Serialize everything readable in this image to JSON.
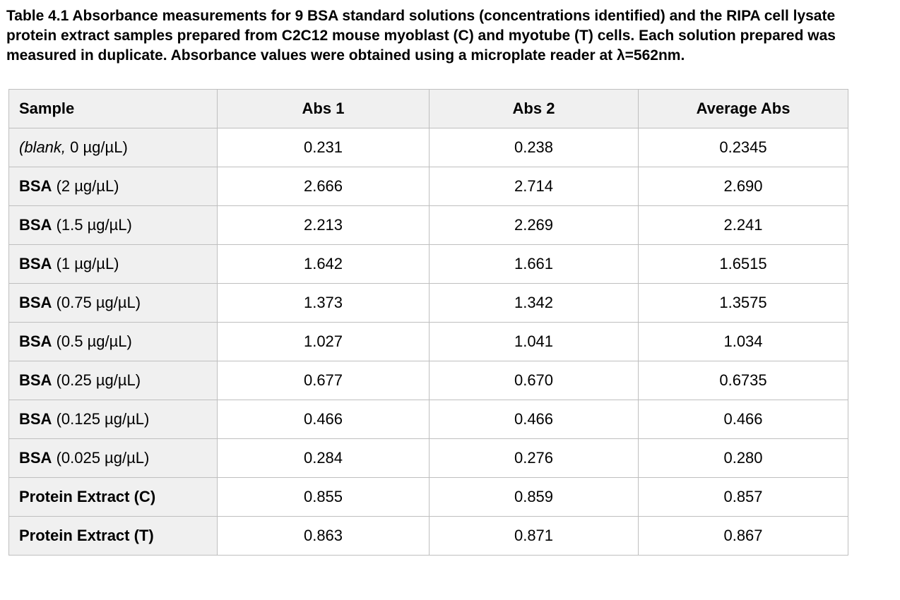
{
  "caption": "Table 4.1 Absorbance measurements for 9 BSA standard solutions (concentrations identified) and the RIPA cell lysate protein extract samples prepared from C2C12 mouse myoblast (C) and myotube (T) cells. Each solution prepared was measured in duplicate. Absorbance values were obtained using a microplate reader at λ=562nm.",
  "colors": {
    "cell_fill": "#f0f0f0",
    "border": "#bfbfbf",
    "text": "#000000",
    "data_cell_bg": "#ffffff"
  },
  "table": {
    "headers": [
      "Sample",
      "Abs 1",
      "Abs 2",
      "Average Abs"
    ],
    "rows": [
      {
        "sample": [
          {
            "text": "(blank,",
            "style": "italic"
          },
          {
            "text": " 0 µg/µL)",
            "style": "normal"
          }
        ],
        "values": [
          "0.231",
          "0.238",
          "0.2345"
        ]
      },
      {
        "sample": [
          {
            "text": "BSA",
            "style": "bold"
          },
          {
            "text": " (2 µg/µL)",
            "style": "normal"
          }
        ],
        "values": [
          "2.666",
          "2.714",
          "2.690"
        ]
      },
      {
        "sample": [
          {
            "text": "BSA",
            "style": "bold"
          },
          {
            "text": " (1.5 µg/µL)",
            "style": "normal"
          }
        ],
        "values": [
          "2.213",
          "2.269",
          "2.241"
        ]
      },
      {
        "sample": [
          {
            "text": "BSA",
            "style": "bold"
          },
          {
            "text": " (1 µg/µL)",
            "style": "normal"
          }
        ],
        "values": [
          "1.642",
          "1.661",
          "1.6515"
        ]
      },
      {
        "sample": [
          {
            "text": "BSA",
            "style": "bold"
          },
          {
            "text": " (0.75 µg/µL)",
            "style": "normal"
          }
        ],
        "values": [
          "1.373",
          "1.342",
          "1.3575"
        ]
      },
      {
        "sample": [
          {
            "text": "BSA",
            "style": "bold"
          },
          {
            "text": " (0.5 µg/µL)",
            "style": "normal"
          }
        ],
        "values": [
          "1.027",
          "1.041",
          "1.034"
        ]
      },
      {
        "sample": [
          {
            "text": "BSA",
            "style": "bold"
          },
          {
            "text": " (0.25 µg/µL)",
            "style": "normal"
          }
        ],
        "values": [
          "0.677",
          "0.670",
          "0.6735"
        ]
      },
      {
        "sample": [
          {
            "text": "BSA",
            "style": "bold"
          },
          {
            "text": " (0.125 µg/µL)",
            "style": "normal"
          }
        ],
        "values": [
          "0.466",
          "0.466",
          "0.466"
        ]
      },
      {
        "sample": [
          {
            "text": "BSA",
            "style": "bold"
          },
          {
            "text": " (0.025 µg/µL)",
            "style": "normal"
          }
        ],
        "values": [
          "0.284",
          "0.276",
          "0.280"
        ]
      },
      {
        "sample": [
          {
            "text": "Protein Extract (C)",
            "style": "bold"
          }
        ],
        "values": [
          "0.855",
          "0.859",
          "0.857"
        ]
      },
      {
        "sample": [
          {
            "text": "Protein Extract (T)",
            "style": "bold"
          }
        ],
        "values": [
          "0.863",
          "0.871",
          "0.867"
        ]
      }
    ]
  }
}
